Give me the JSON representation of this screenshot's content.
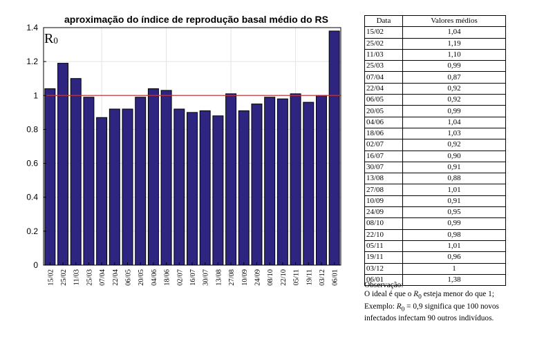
{
  "chart_data": {
    "type": "bar",
    "title": "aproximação do índice de reprodução basal médio do RS",
    "inset_label": "R",
    "inset_label_sub": "0",
    "categories": [
      "15/02",
      "25/02",
      "11/03",
      "25/03",
      "07/04",
      "22/04",
      "06/05",
      "20/05",
      "04/06",
      "18/06",
      "02/07",
      "16/07",
      "30/07",
      "13/08",
      "27/08",
      "10/09",
      "24/09",
      "08/10",
      "22/10",
      "05/11",
      "19/11",
      "03/12",
      "06/01"
    ],
    "values": [
      1.04,
      1.19,
      1.1,
      0.99,
      0.87,
      0.92,
      0.92,
      0.99,
      1.04,
      1.03,
      0.92,
      0.9,
      0.91,
      0.88,
      1.01,
      0.91,
      0.95,
      0.99,
      0.98,
      1.01,
      0.96,
      1.0,
      1.38
    ],
    "ylim": [
      0,
      1.4
    ],
    "yticks": [
      "0",
      "0.2",
      "0.4",
      "0.6",
      "0.8",
      "1",
      "1.2",
      "1.4"
    ],
    "reference_line": 1,
    "grid": true,
    "xlabel": "",
    "ylabel": "",
    "colors": {
      "bar": "#2e2581",
      "bar_edge": "#000000",
      "reference_line": "#c0393b"
    }
  },
  "table": {
    "headers": [
      "Data",
      "Valores médios"
    ],
    "rows": [
      [
        "15/02",
        "1,04"
      ],
      [
        "25/02",
        "1,19"
      ],
      [
        "11/03",
        "1,10"
      ],
      [
        "25/03",
        "0,99"
      ],
      [
        "07/04",
        "0,87"
      ],
      [
        "22/04",
        "0,92"
      ],
      [
        "06/05",
        "0,92"
      ],
      [
        "20/05",
        "0,99"
      ],
      [
        "04/06",
        "1,04"
      ],
      [
        "18/06",
        "1,03"
      ],
      [
        "02/07",
        "0,92"
      ],
      [
        "16/07",
        "0,90"
      ],
      [
        "30/07",
        "0,91"
      ],
      [
        "13/08",
        "0,88"
      ],
      [
        "27/08",
        "1,01"
      ],
      [
        "10/09",
        "0,91"
      ],
      [
        "24/09",
        "0,95"
      ],
      [
        "08/10",
        "0,99"
      ],
      [
        "22/10",
        "0,98"
      ],
      [
        "05/11",
        "1,01"
      ],
      [
        "19/11",
        "0,96"
      ],
      [
        "03/12",
        "1"
      ],
      [
        "06/01",
        "1,38"
      ]
    ]
  },
  "note": {
    "line1": "Observação:",
    "line2_pre": "O ideal é que o ",
    "line2_post": " esteja menor do que 1;",
    "line3_pre": "Exemplo: ",
    "line3_post": " significa que 100 novos",
    "line4": "infectados infectam 90 outros indivíduos.",
    "symbol": "R",
    "symbol_sub": "0",
    "example_value": " = 0,9"
  }
}
